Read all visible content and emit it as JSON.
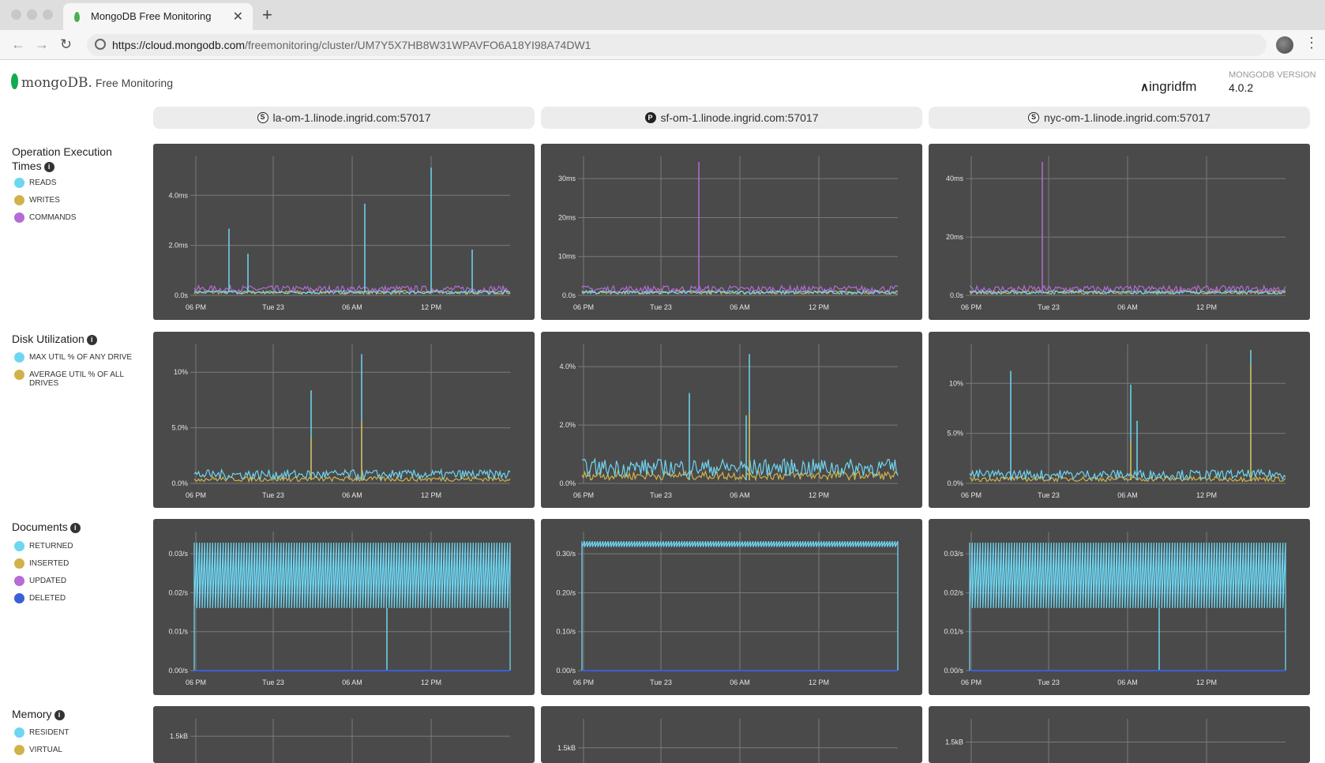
{
  "browser": {
    "tab_title": "MongoDB Free Monitoring",
    "tab_close": "✕",
    "new_tab": "+",
    "url_host": "https://cloud.mongodb.com",
    "url_path": "/freemonitoring/cluster/UM7Y5X7HB8W31WPAVFO6A18YI98A74DW1"
  },
  "header": {
    "brand": "mongoDB.",
    "product": "Free Monitoring",
    "user": "ingridfm",
    "version_label": "MONGODB VERSION",
    "version": "4.0.2"
  },
  "hosts": [
    {
      "name": "la-om-1.linode.ingrid.com:57017",
      "role": "S"
    },
    {
      "name": "sf-om-1.linode.ingrid.com:57017",
      "role": "P"
    },
    {
      "name": "nyc-om-1.linode.ingrid.com:57017",
      "role": "S"
    }
  ],
  "colors": {
    "cyan": "#6fd6f2",
    "gold": "#d1b24a",
    "purple": "#b66bd6",
    "blue": "#3b5fd6",
    "panel_bg": "#4a4a4a",
    "grid": "#7a7a7a"
  },
  "x_ticks": [
    "06 PM",
    "Tue 23",
    "06 AM",
    "12 PM"
  ],
  "sections": [
    {
      "title": "Operation Execution Times",
      "info": "i",
      "legend": [
        {
          "label": "READS",
          "color": "#6fd6f2"
        },
        {
          "label": "WRITES",
          "color": "#d1b24a"
        },
        {
          "label": "COMMANDS",
          "color": "#b66bd6"
        }
      ],
      "y_ticks": [
        [
          "0.0s",
          "2.0ms",
          "4.0ms"
        ],
        [
          "0.0s",
          "10ms",
          "20ms",
          "30ms"
        ],
        [
          "0.0s",
          "20ms",
          "40ms"
        ]
      ]
    },
    {
      "title": "Disk Utilization",
      "info": "i",
      "legend": [
        {
          "label": "MAX UTIL % OF ANY DRIVE",
          "color": "#6fd6f2"
        },
        {
          "label": "AVERAGE UTIL % OF ALL DRIVES",
          "color": "#d1b24a"
        }
      ],
      "y_ticks": [
        [
          "0.0%",
          "5.0%",
          "10%"
        ],
        [
          "0.0%",
          "2.0%",
          "4.0%"
        ],
        [
          "0.0%",
          "5.0%",
          "10%"
        ]
      ]
    },
    {
      "title": "Documents",
      "info": "i",
      "legend": [
        {
          "label": "RETURNED",
          "color": "#6fd6f2"
        },
        {
          "label": "INSERTED",
          "color": "#d1b24a"
        },
        {
          "label": "UPDATED",
          "color": "#b66bd6"
        },
        {
          "label": "DELETED",
          "color": "#3b5fd6"
        }
      ],
      "y_ticks": [
        [
          "0.00/s",
          "0.01/s",
          "0.02/s",
          "0.03/s"
        ],
        [
          "0.00/s",
          "0.10/s",
          "0.20/s",
          "0.30/s"
        ],
        [
          "0.00/s",
          "0.01/s",
          "0.02/s",
          "0.03/s"
        ]
      ]
    },
    {
      "title": "Memory",
      "info": "i",
      "legend": [
        {
          "label": "RESIDENT",
          "color": "#6fd6f2"
        },
        {
          "label": "VIRTUAL",
          "color": "#d1b24a"
        }
      ],
      "y_ticks": [
        [
          "1.5kB"
        ],
        [
          "1.5kB"
        ],
        [
          "1.5kB"
        ]
      ]
    }
  ]
}
